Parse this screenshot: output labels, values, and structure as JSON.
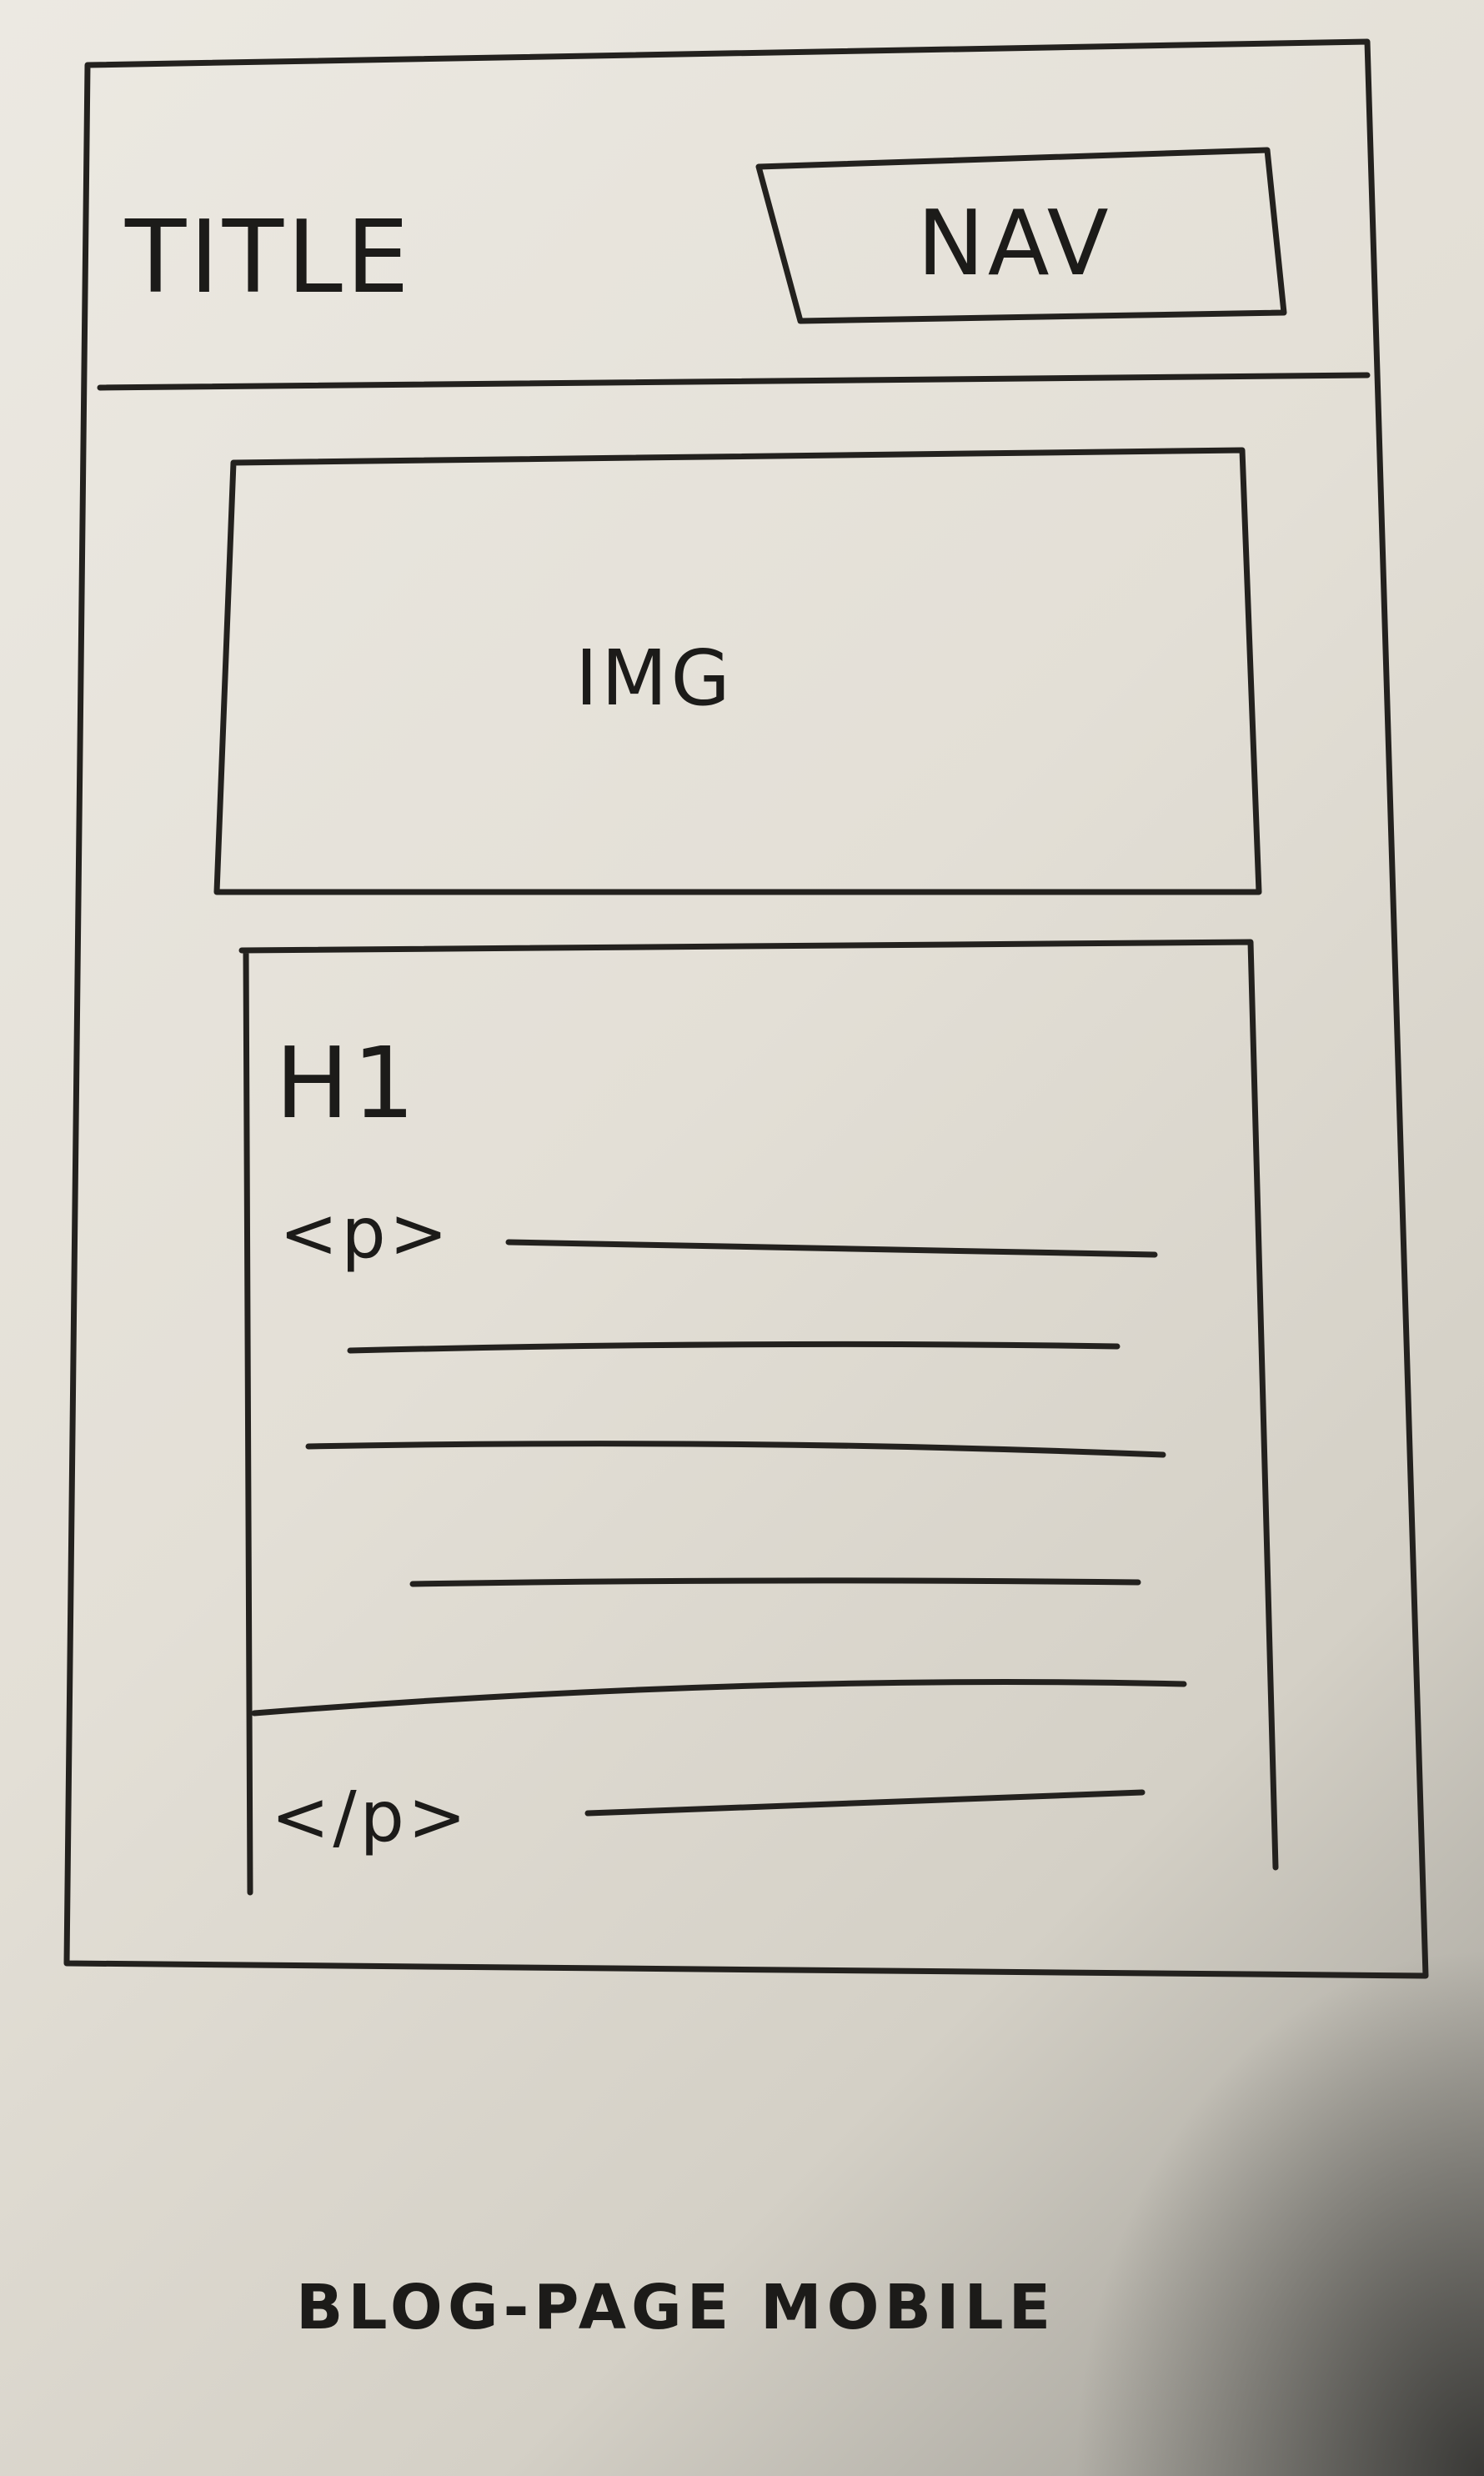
{
  "header": {
    "title": "TITLE",
    "nav": "NAV"
  },
  "hero": {
    "image_label": "IMG"
  },
  "article": {
    "heading": "H1",
    "paragraph_open": "<p>",
    "paragraph_close": "</p>"
  },
  "caption": "BLOG-PAGE MOBILE"
}
